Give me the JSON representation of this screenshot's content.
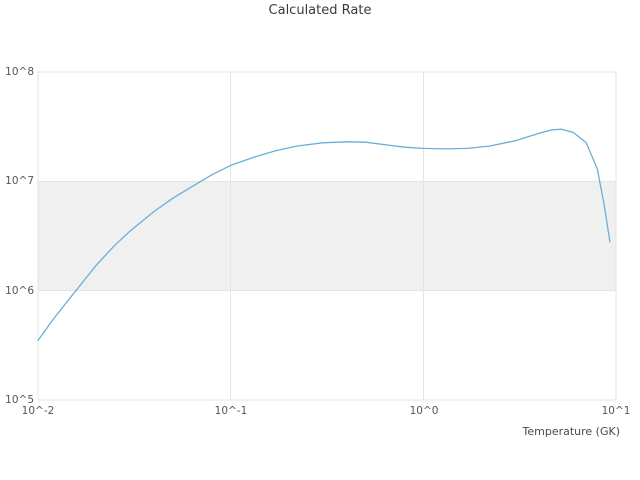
{
  "chart_data": {
    "type": "line",
    "title": "Calculated Rate",
    "xlabel": "Temperature (GK)",
    "ylabel": "",
    "x_scale": "log",
    "y_scale": "log",
    "xlim": [
      0.01,
      10
    ],
    "ylim": [
      100000,
      100000000
    ],
    "x_tick_labels": [
      "10^-2",
      "10^-1",
      "10^0",
      "10^1"
    ],
    "x_tick_values": [
      0.01,
      0.1,
      1,
      10
    ],
    "y_tick_labels": [
      "10^5",
      "10^6",
      "10^7",
      "10^8"
    ],
    "y_tick_values": [
      100000,
      1000000,
      10000000,
      100000000
    ],
    "grid": true,
    "grid_color": "#e5e5e5",
    "band": {
      "y_from": 1000000,
      "y_to": 10000000,
      "color": "#f0f0f0"
    },
    "legend": "none",
    "series": [
      {
        "name": "calculated-rate",
        "color": "#6baed6",
        "x": [
          0.01,
          0.012,
          0.015,
          0.02,
          0.025,
          0.03,
          0.04,
          0.05,
          0.06,
          0.08,
          0.1,
          0.13,
          0.17,
          0.22,
          0.3,
          0.4,
          0.5,
          0.65,
          0.8,
          1.0,
          1.3,
          1.7,
          2.2,
          3.0,
          4.0,
          4.6,
          5.2,
          6.0,
          7.0,
          8.0,
          8.7,
          9.3
        ],
        "y": [
          350000,
          550000,
          900000,
          1700000,
          2600000,
          3500000,
          5300000,
          7000000,
          8500000,
          11500000,
          14000000,
          16500000,
          19000000,
          21000000,
          22500000,
          23000000,
          22800000,
          21500000,
          20500000,
          20000000,
          19800000,
          20000000,
          21000000,
          23500000,
          27500000,
          29500000,
          30000000,
          28000000,
          22500000,
          13000000,
          6000000,
          2800000
        ]
      }
    ]
  }
}
